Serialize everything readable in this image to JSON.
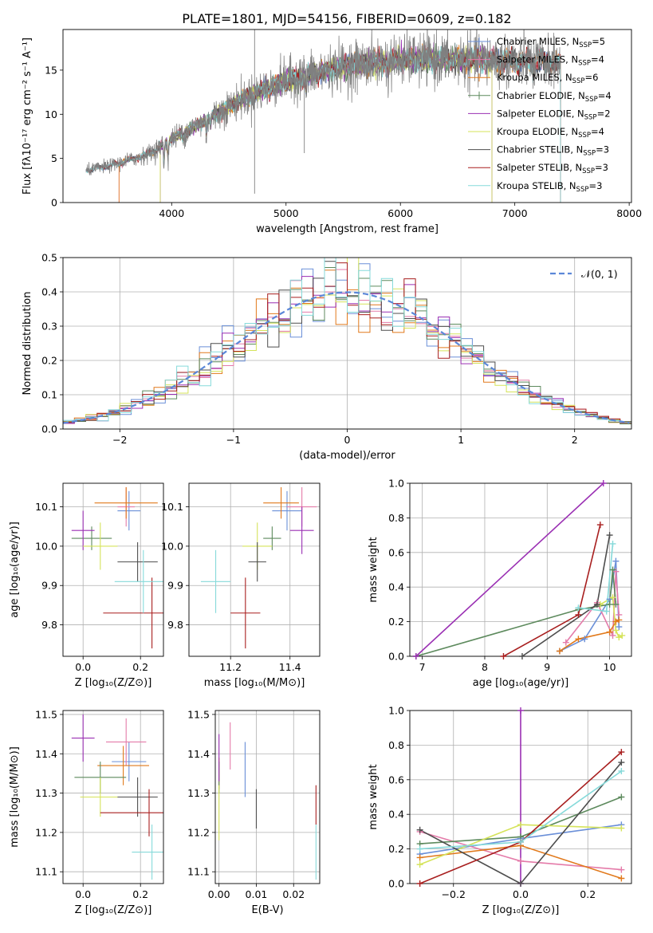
{
  "figure_title": "PLATE=1801, MJD=54156, FIBERID=0609, z=0.182",
  "colors": {
    "Chabrier MILES": "#6a8fd8",
    "Salpeter MILES": "#e47ba9",
    "Kroupa MILES": "#e1791b",
    "Chabrier ELODIE": "#5d8a5d",
    "Salpeter ELODIE": "#9a2fb3",
    "Kroupa ELODIE": "#d5e35a",
    "Chabrier STELIB": "#4d4d4d",
    "Salpeter STELIB": "#a81f1f",
    "Kroupa STELIB": "#86dada",
    "data": "#808080",
    "normal": "#5b87d8"
  },
  "chart_data": [
    {
      "id": "spectrum",
      "type": "line",
      "xlabel": "wavelength [Angstrom, rest frame]",
      "ylabel": "Flux [fλ10⁻¹⁷ erg cm⁻² s⁻¹ A⁻¹]",
      "xlim": [
        3050,
        8020
      ],
      "ylim": [
        0,
        19.6
      ],
      "xticks": [
        4000,
        5000,
        6000,
        7000,
        8000
      ],
      "yticks": [
        0,
        5,
        10,
        15
      ],
      "legend_position": "upper right",
      "continuum": [
        [
          3250,
          3.6
        ],
        [
          3500,
          4.3
        ],
        [
          3800,
          5.5
        ],
        [
          4000,
          7.2
        ],
        [
          4300,
          9.3
        ],
        [
          4600,
          11.6
        ],
        [
          4900,
          13.4
        ],
        [
          5200,
          14.5
        ],
        [
          5500,
          15.4
        ],
        [
          5800,
          15.9
        ],
        [
          6100,
          16.2
        ],
        [
          6400,
          16.2
        ],
        [
          6700,
          16.2
        ],
        [
          7000,
          16.0
        ],
        [
          7200,
          15.9
        ],
        [
          7400,
          15.8
        ]
      ],
      "features": [
        [
          3933,
          -2.2
        ],
        [
          3968,
          -1.8
        ],
        [
          4101,
          -0.8
        ],
        [
          4304,
          -1.5
        ],
        [
          4340,
          -0.8
        ],
        [
          4861,
          -0.7
        ],
        [
          5175,
          -1.3
        ],
        [
          5270,
          -0.8
        ],
        [
          5893,
          -1.1
        ],
        [
          6563,
          -0.6
        ],
        [
          7160,
          -1.4
        ]
      ],
      "spikes": [
        [
          4725,
          19.6,
          1.0
        ],
        [
          5160,
          14.2,
          5.6
        ]
      ],
      "series": [
        {
          "name": "Chabrier MILES",
          "label": "Chabrier MILES, N",
          "sub": "SSP",
          "tail": "=5",
          "marker": "+",
          "range": [
            3250,
            7400
          ]
        },
        {
          "name": "Salpeter MILES",
          "label": "Salpeter MILES, N",
          "sub": "SSP",
          "tail": "=4",
          "marker": "+",
          "range": [
            3540,
            7400
          ]
        },
        {
          "name": "Kroupa MILES",
          "label": "Kroupa MILES, N",
          "sub": "SSP",
          "tail": "=6",
          "marker": "+",
          "range": [
            3540,
            7400
          ]
        },
        {
          "name": "Chabrier ELODIE",
          "label": "Chabrier ELODIE, N",
          "sub": "SSP",
          "tail": "=4",
          "marker": "+",
          "range": [
            3900,
            6800
          ]
        },
        {
          "name": "Salpeter ELODIE",
          "label": "Salpeter ELODIE, N",
          "sub": "SSP",
          "tail": "=2",
          "marker": "",
          "range": [
            3900,
            6800
          ]
        },
        {
          "name": "Kroupa ELODIE",
          "label": "Kroupa ELODIE, N",
          "sub": "SSP",
          "tail": "=4",
          "marker": "",
          "range": [
            3900,
            6800
          ]
        },
        {
          "name": "Chabrier STELIB",
          "label": "Chabrier STELIB, N",
          "sub": "SSP",
          "tail": "=3",
          "marker": "",
          "range": [
            3250,
            7400
          ]
        },
        {
          "name": "Salpeter STELIB",
          "label": "Salpeter STELIB, N",
          "sub": "SSP",
          "tail": "=3",
          "marker": "",
          "range": [
            3250,
            7400
          ]
        },
        {
          "name": "Kroupa STELIB",
          "label": "Kroupa STELIB, N",
          "sub": "SSP",
          "tail": "=3",
          "marker": "",
          "range": [
            3250,
            7400
          ]
        }
      ]
    },
    {
      "id": "residuals",
      "type": "histogram",
      "xlabel": "(data-model)/error",
      "ylabel": "Normed distribution",
      "xlim": [
        -2.5,
        2.5
      ],
      "ylim": [
        0,
        0.5
      ],
      "xticks": [
        -2,
        -1,
        0,
        1,
        2
      ],
      "yticks": [
        0.0,
        0.1,
        0.2,
        0.3,
        0.4,
        0.5
      ],
      "bin_edges_range": [
        -2.5,
        2.5
      ],
      "bin_width": 0.1,
      "legend_position": "upper right",
      "normal_curve": {
        "label": "𝒩(0, 1)",
        "mean": 0,
        "sigma": 1
      }
    },
    {
      "id": "age_vs_Z",
      "type": "scatter",
      "xlabel": "Z [log₁₀(Z/Z⊙)]",
      "ylabel": "age  [log₁₀(age/yr)]",
      "xlim": [
        -0.07,
        0.28
      ],
      "ylim": [
        9.72,
        10.16
      ],
      "xticks": [
        0.0,
        0.2
      ],
      "yticks": [
        9.8,
        9.9,
        10.0,
        10.1
      ],
      "points": [
        {
          "series": "Chabrier MILES",
          "x": 0.16,
          "y": 10.09,
          "xerr": 0.04,
          "yerr": 0.05
        },
        {
          "series": "Salpeter MILES",
          "x": 0.15,
          "y": 10.1,
          "xerr": 0.03,
          "yerr": 0.05
        },
        {
          "series": "Kroupa MILES",
          "x": 0.15,
          "y": 10.11,
          "xerr": 0.11,
          "yerr": 0.04
        },
        {
          "series": "Chabrier ELODIE",
          "x": 0.03,
          "y": 10.02,
          "xerr": 0.07,
          "yerr": 0.03
        },
        {
          "series": "Salpeter ELODIE",
          "x": 0.0,
          "y": 10.04,
          "xerr": 0.04,
          "yerr": 0.05
        },
        {
          "series": "Kroupa ELODIE",
          "x": 0.06,
          "y": 10.0,
          "xerr": 0.06,
          "yerr": 0.06
        },
        {
          "series": "Chabrier STELIB",
          "x": 0.19,
          "y": 9.96,
          "xerr": 0.07,
          "yerr": 0.05
        },
        {
          "series": "Salpeter STELIB",
          "x": 0.24,
          "y": 9.83,
          "xerr": 0.17,
          "yerr": 0.09
        },
        {
          "series": "Kroupa STELIB",
          "x": 0.21,
          "y": 9.91,
          "xerr": 0.1,
          "yerr": 0.08
        }
      ]
    },
    {
      "id": "age_vs_mass",
      "type": "scatter",
      "xlabel": "mass [log₁₀(M/M⊙)]",
      "ylabel": "",
      "xlim": [
        11.06,
        11.5
      ],
      "ylim": [
        9.72,
        10.16
      ],
      "xticks": [
        11.2,
        11.4
      ],
      "yticks": [
        9.8,
        9.9,
        10.0,
        10.1
      ],
      "points": [
        {
          "series": "Chabrier MILES",
          "x": 11.39,
          "y": 10.09,
          "xerr": 0.05,
          "yerr": 0.05
        },
        {
          "series": "Salpeter MILES",
          "x": 11.44,
          "y": 10.1,
          "xerr": 0.05,
          "yerr": 0.05
        },
        {
          "series": "Kroupa MILES",
          "x": 11.37,
          "y": 10.11,
          "xerr": 0.06,
          "yerr": 0.04
        },
        {
          "series": "Chabrier ELODIE",
          "x": 11.34,
          "y": 10.02,
          "xerr": 0.03,
          "yerr": 0.03
        },
        {
          "series": "Salpeter ELODIE",
          "x": 11.44,
          "y": 10.04,
          "xerr": 0.04,
          "yerr": 0.06
        },
        {
          "series": "Kroupa ELODIE",
          "x": 11.29,
          "y": 10.0,
          "xerr": 0.05,
          "yerr": 0.06
        },
        {
          "series": "Chabrier STELIB",
          "x": 11.29,
          "y": 9.96,
          "xerr": 0.03,
          "yerr": 0.05
        },
        {
          "series": "Salpeter STELIB",
          "x": 11.25,
          "y": 9.83,
          "xerr": 0.05,
          "yerr": 0.09
        },
        {
          "series": "Kroupa STELIB",
          "x": 11.15,
          "y": 9.91,
          "xerr": 0.05,
          "yerr": 0.08
        }
      ]
    },
    {
      "id": "mass_weight_vs_age",
      "type": "line",
      "xlabel": "age  [log₁₀(age/yr)]",
      "ylabel": "mass weight",
      "xlim": [
        6.8,
        10.35
      ],
      "ylim": [
        0,
        1.0
      ],
      "xticks": [
        7,
        8,
        9,
        10
      ],
      "yticks": [
        0.0,
        0.2,
        0.4,
        0.6,
        0.8,
        1.0
      ],
      "series": [
        {
          "name": "Chabrier MILES",
          "points": [
            [
              9.2,
              0.03
            ],
            [
              9.6,
              0.1
            ],
            [
              10.0,
              0.33
            ],
            [
              10.1,
              0.55
            ],
            [
              10.15,
              0.17
            ]
          ]
        },
        {
          "name": "Salpeter MILES",
          "points": [
            [
              9.3,
              0.08
            ],
            [
              9.8,
              0.31
            ],
            [
              10.05,
              0.12
            ],
            [
              10.1,
              0.49
            ],
            [
              10.15,
              0.24
            ]
          ]
        },
        {
          "name": "Kroupa MILES",
          "points": [
            [
              9.2,
              0.03
            ],
            [
              9.5,
              0.1
            ],
            [
              10.0,
              0.14
            ],
            [
              10.1,
              0.2
            ],
            [
              10.15,
              0.21
            ]
          ]
        },
        {
          "name": "Chabrier ELODIE",
          "points": [
            [
              6.9,
              0.0
            ],
            [
              9.5,
              0.27
            ],
            [
              10.0,
              0.3
            ],
            [
              10.05,
              0.5
            ],
            [
              10.1,
              0.3
            ]
          ]
        },
        {
          "name": "Salpeter ELODIE",
          "points": [
            [
              6.9,
              0.0
            ],
            [
              9.9,
              1.0
            ]
          ]
        },
        {
          "name": "Kroupa ELODIE",
          "points": [
            [
              9.85,
              0.3
            ],
            [
              10.05,
              0.34
            ],
            [
              10.1,
              0.15
            ],
            [
              10.15,
              0.11
            ],
            [
              10.2,
              0.12
            ]
          ]
        },
        {
          "name": "Chabrier STELIB",
          "points": [
            [
              8.6,
              0.0
            ],
            [
              9.8,
              0.3
            ],
            [
              10.0,
              0.7
            ]
          ]
        },
        {
          "name": "Salpeter STELIB",
          "points": [
            [
              8.3,
              0.0
            ],
            [
              9.5,
              0.24
            ],
            [
              9.85,
              0.76
            ]
          ]
        },
        {
          "name": "Kroupa STELIB",
          "points": [
            [
              9.5,
              0.28
            ],
            [
              9.95,
              0.26
            ],
            [
              10.05,
              0.65
            ]
          ]
        }
      ]
    },
    {
      "id": "mass_vs_Z",
      "type": "scatter",
      "xlabel": "Z [log₁₀(Z/Z⊙)]",
      "ylabel": "mass [log₁₀(M/M⊙)]",
      "xlim": [
        -0.07,
        0.28
      ],
      "ylim": [
        11.07,
        11.51
      ],
      "xticks": [
        0.0,
        0.2
      ],
      "yticks": [
        11.1,
        11.2,
        11.3,
        11.4,
        11.5
      ],
      "points": [
        {
          "series": "Chabrier MILES",
          "x": 0.16,
          "y": 11.38,
          "xerr": 0.06,
          "yerr": 0.05
        },
        {
          "series": "Salpeter MILES",
          "x": 0.15,
          "y": 11.43,
          "xerr": 0.07,
          "yerr": 0.06
        },
        {
          "series": "Kroupa MILES",
          "x": 0.14,
          "y": 11.37,
          "xerr": 0.09,
          "yerr": 0.05
        },
        {
          "series": "Chabrier ELODIE",
          "x": 0.06,
          "y": 11.34,
          "xerr": 0.09,
          "yerr": 0.04
        },
        {
          "series": "Salpeter ELODIE",
          "x": 0.0,
          "y": 11.44,
          "xerr": 0.04,
          "yerr": 0.06
        },
        {
          "series": "Kroupa ELODIE",
          "x": 0.06,
          "y": 11.29,
          "xerr": 0.07,
          "yerr": 0.05
        },
        {
          "series": "Chabrier STELIB",
          "x": 0.19,
          "y": 11.29,
          "xerr": 0.07,
          "yerr": 0.05
        },
        {
          "series": "Salpeter STELIB",
          "x": 0.23,
          "y": 11.25,
          "xerr": 0.17,
          "yerr": 0.06
        },
        {
          "series": "Kroupa STELIB",
          "x": 0.24,
          "y": 11.15,
          "xerr": 0.07,
          "yerr": 0.07
        }
      ]
    },
    {
      "id": "mass_vs_ebv",
      "type": "scatter",
      "xlabel": "E(B-V)",
      "ylabel": "",
      "xlim": [
        -0.001,
        0.027
      ],
      "ylim": [
        11.07,
        11.51
      ],
      "xticks": [
        0.0,
        0.01,
        0.02
      ],
      "yticks": [
        11.1,
        11.2,
        11.3,
        11.4,
        11.5
      ],
      "points": [
        {
          "series": "Chabrier MILES",
          "x": 0.007,
          "y": 11.36,
          "xerr": 0,
          "yerr": 0.07
        },
        {
          "series": "Salpeter MILES",
          "x": 0.003,
          "y": 11.42,
          "xerr": 0,
          "yerr": 0.06
        },
        {
          "series": "Kroupa MILES",
          "x": 0.0,
          "y": 11.35,
          "xerr": 0,
          "yerr": 0.04
        },
        {
          "series": "Chabrier ELODIE",
          "x": 0.0,
          "y": 11.34,
          "xerr": 0,
          "yerr": 0.04
        },
        {
          "series": "Salpeter ELODIE",
          "x": 0.0,
          "y": 11.39,
          "xerr": 0,
          "yerr": 0.06
        },
        {
          "series": "Kroupa ELODIE",
          "x": 0.0,
          "y": 11.25,
          "xerr": 0,
          "yerr": 0.07
        },
        {
          "series": "Chabrier STELIB",
          "x": 0.01,
          "y": 11.26,
          "xerr": 0,
          "yerr": 0.05
        },
        {
          "series": "Salpeter STELIB",
          "x": 0.026,
          "y": 11.27,
          "xerr": 0,
          "yerr": 0.05
        },
        {
          "series": "Kroupa STELIB",
          "x": 0.026,
          "y": 11.15,
          "xerr": 0,
          "yerr": 0.07
        }
      ]
    },
    {
      "id": "mass_weight_vs_Z",
      "type": "line",
      "xlabel": "Z [log₁₀(Z/Z⊙)]",
      "ylabel": "mass weight",
      "xlim": [
        -0.33,
        0.33
      ],
      "ylim": [
        0,
        1.0
      ],
      "xticks": [
        -0.2,
        0.0,
        0.2
      ],
      "yticks": [
        0.0,
        0.2,
        0.4,
        0.6,
        0.8,
        1.0
      ],
      "series": [
        {
          "name": "Chabrier MILES",
          "points": [
            [
              -0.3,
              0.17
            ],
            [
              0.0,
              0.26
            ],
            [
              0.3,
              0.34
            ]
          ]
        },
        {
          "name": "Salpeter MILES",
          "points": [
            [
              -0.3,
              0.3
            ],
            [
              0.0,
              0.13
            ],
            [
              0.3,
              0.08
            ]
          ]
        },
        {
          "name": "Kroupa MILES",
          "points": [
            [
              -0.3,
              0.15
            ],
            [
              0.0,
              0.22
            ],
            [
              0.3,
              0.03
            ]
          ]
        },
        {
          "name": "Chabrier ELODIE",
          "points": [
            [
              -0.3,
              0.23
            ],
            [
              0.0,
              0.27
            ],
            [
              0.3,
              0.5
            ]
          ]
        },
        {
          "name": "Salpeter ELODIE",
          "points": [
            [
              0.0,
              0.0
            ],
            [
              0.0,
              1.0
            ]
          ]
        },
        {
          "name": "Kroupa ELODIE",
          "points": [
            [
              -0.3,
              0.11
            ],
            [
              0.0,
              0.34
            ],
            [
              0.3,
              0.32
            ]
          ]
        },
        {
          "name": "Chabrier STELIB",
          "points": [
            [
              -0.3,
              0.31
            ],
            [
              0.0,
              0.0
            ],
            [
              0.3,
              0.7
            ]
          ]
        },
        {
          "name": "Salpeter STELIB",
          "points": [
            [
              -0.3,
              0.0
            ],
            [
              0.0,
              0.24
            ],
            [
              0.3,
              0.76
            ]
          ]
        },
        {
          "name": "Kroupa STELIB",
          "points": [
            [
              -0.3,
              0.2
            ],
            [
              0.0,
              0.24
            ],
            [
              0.3,
              0.65
            ]
          ]
        }
      ]
    }
  ]
}
